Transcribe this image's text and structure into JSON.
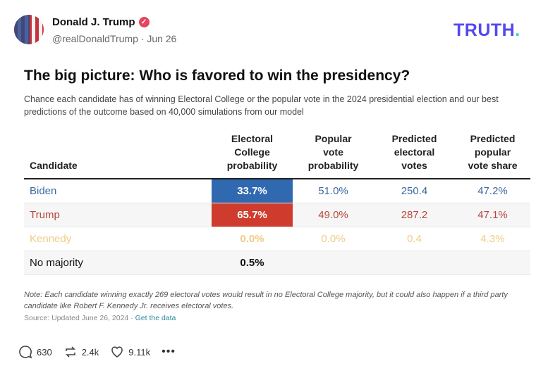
{
  "post": {
    "author": "Donald J. Trump",
    "handle": "@realDonaldTrump",
    "date": "Jun 26",
    "verified_icon": "verified-badge-icon",
    "logo": "TRUTH",
    "logo_dot": ".",
    "brand_color": "#5448ee"
  },
  "card": {
    "title": "The big picture: Who is favored to win the presidency?",
    "subtitle": "Chance each candidate has of winning Electoral College or the popular vote in the 2024 presidential election and our best predictions of the outcome based on 40,000 simulations from our model",
    "columns": [
      "Candidate",
      "Electoral College probability",
      "Popular vote probability",
      "Predicted electoral votes",
      "Predicted popular vote share"
    ],
    "rows": [
      {
        "candidate": "Biden",
        "ec": "33.7%",
        "pop": "51.0%",
        "ev": "250.4",
        "share": "47.2%",
        "color": "#3b6aa0"
      },
      {
        "candidate": "Trump",
        "ec": "65.7%",
        "pop": "49.0%",
        "ev": "287.2",
        "share": "47.1%",
        "color": "#b5473a"
      },
      {
        "candidate": "Kennedy",
        "ec": "0.0%",
        "pop": "0.0%",
        "ev": "0.4",
        "share": "4.3%",
        "color": "#f0cc86"
      },
      {
        "candidate": "No majority",
        "ec": "0.5%"
      }
    ],
    "note": "Note: Each candidate winning exactly 269 electoral votes would result in no Electoral College majority, but it could also happen if a third party candidate like Robert F. Kennedy Jr. receives electoral votes.",
    "source": "Source: Updated June 26, 2024 · ",
    "source_link": "Get the data"
  },
  "actions": {
    "replies": "630",
    "reposts": "2.4k",
    "likes": "9.11k"
  }
}
